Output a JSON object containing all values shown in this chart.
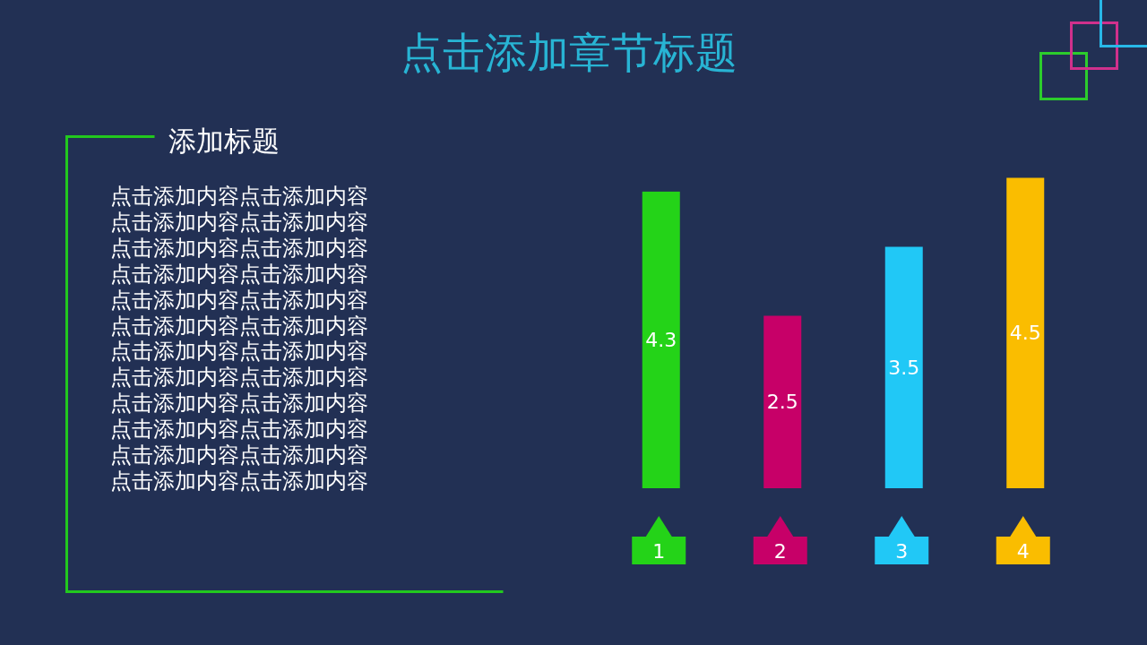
{
  "chart_data": {
    "type": "bar",
    "title": "点击添加章节标题",
    "categories": [
      "1",
      "2",
      "3",
      "4"
    ],
    "values": [
      4.3,
      2.5,
      3.5,
      4.5
    ],
    "colors": [
      "#24d318",
      "#c70068",
      "#21c8f6",
      "#fabd00"
    ],
    "data_labels": true,
    "annotations": [
      "添加标题",
      "点击添加内容点击添加内容",
      "点击添加内容点击添加内容",
      "点击添加内容点击添加内容",
      "点击添加内容点击添加内容",
      "点击添加内容点击添加内容",
      "点击添加内容点击添加内容",
      "点击添加内容点击添加内容",
      "点击添加内容点击添加内容",
      "点击添加内容点击添加内容",
      "点击添加内容点击添加内容",
      "点击添加内容点击添加内容",
      "点击添加内容点击添加内容"
    ]
  }
}
